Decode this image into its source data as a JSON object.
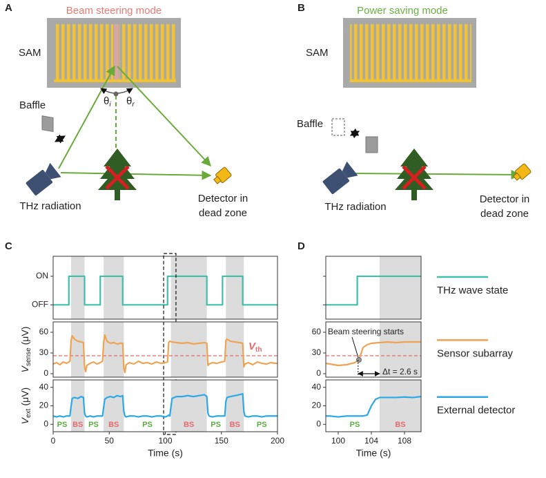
{
  "panel_labels": [
    "A",
    "B",
    "C",
    "D"
  ],
  "diagram_a": {
    "title": "Beam steering mode",
    "sam": "SAM",
    "baffle": "Baffle",
    "source": "THz radiation",
    "detector": [
      "Detector in",
      "dead zone"
    ],
    "theta_i": {
      "main": "θ",
      "sub": "i"
    },
    "theta_r": {
      "main": "θ",
      "sub": "r"
    }
  },
  "diagram_b": {
    "title": "Power saving mode",
    "sam": "SAM",
    "baffle": "Baffle",
    "source": "THz radiation",
    "detector": [
      "Detector in",
      "dead zone"
    ]
  },
  "chart_data": [
    {
      "type": "line",
      "xlim": [
        0,
        200
      ],
      "ylim": [
        -0.5,
        1.7
      ],
      "yticks": [
        {
          "value": 0,
          "label": "OFF"
        },
        {
          "value": 1,
          "label": "ON"
        }
      ],
      "x": [
        0,
        14,
        14,
        28,
        28,
        42,
        42,
        62,
        62,
        102,
        102,
        137,
        137,
        151,
        151,
        169,
        169,
        200
      ],
      "series": [
        {
          "name": "THz wave state",
          "color": "#3dbfab",
          "values": [
            0,
            0,
            1,
            1,
            0,
            0,
            1,
            1,
            0,
            0,
            1,
            1,
            0,
            0,
            1,
            1,
            0,
            0
          ]
        }
      ],
      "shaded": [
        [
          16,
          28
        ],
        [
          45,
          63
        ],
        [
          105,
          137
        ],
        [
          154,
          170
        ]
      ],
      "shade_color": "#dcdcdc",
      "dashed_box_x": [
        98.5,
        109.5
      ]
    },
    {
      "type": "line",
      "xlim": [
        0,
        200
      ],
      "ylim": [
        -5,
        75
      ],
      "yticks": [
        0,
        30,
        60
      ],
      "ylabel": {
        "main": "V",
        "sub": "sense",
        "unit": "(μV)"
      },
      "x": [
        0,
        3,
        6,
        9,
        12,
        15,
        16,
        17,
        19,
        22,
        25,
        27,
        28,
        29,
        30,
        33,
        36,
        39,
        42,
        44,
        45,
        46,
        48,
        51,
        54,
        57,
        60,
        62,
        63,
        64,
        65,
        68,
        72,
        76,
        80,
        84,
        88,
        92,
        96,
        100,
        102,
        103,
        104,
        106,
        110,
        115,
        120,
        125,
        130,
        135,
        137,
        138,
        139,
        142,
        146,
        150,
        153,
        154,
        155,
        158,
        162,
        166,
        169,
        170,
        171,
        174,
        178,
        182,
        186,
        190,
        194,
        198,
        200
      ],
      "series": [
        {
          "name": "Sensor subarray",
          "color": "#f0a253",
          "values": [
            14,
            16,
            13,
            17,
            15,
            18,
            48,
            55,
            50,
            47,
            46,
            45,
            10,
            3,
            12,
            15,
            17,
            14,
            16,
            18,
            45,
            56,
            47,
            44,
            45,
            43,
            44,
            44,
            8,
            2,
            13,
            16,
            14,
            18,
            15,
            16,
            14,
            17,
            15,
            16,
            17,
            45,
            47,
            46,
            45,
            44,
            45,
            43,
            44,
            45,
            44,
            12,
            14,
            16,
            15,
            17,
            18,
            48,
            50,
            47,
            46,
            45,
            44,
            10,
            14,
            16,
            13,
            17,
            15,
            14,
            16,
            15,
            15
          ]
        }
      ],
      "shaded": [
        [
          16,
          28
        ],
        [
          45,
          63
        ],
        [
          105,
          137
        ],
        [
          154,
          170
        ]
      ],
      "shade_color": "#dcdcdc",
      "threshold": {
        "value": 26,
        "color": "#e8696b",
        "label": {
          "main": "V",
          "sub": "th"
        }
      }
    },
    {
      "type": "line",
      "xlim": [
        0,
        200
      ],
      "ylim": [
        -8,
        48
      ],
      "yticks": [
        0,
        20,
        40
      ],
      "xticks": [
        0,
        50,
        100,
        150,
        200
      ],
      "xlabel": "Time (s)",
      "ylabel": {
        "main": "V",
        "sub": "ext",
        "unit": "(μV)"
      },
      "x": [
        0,
        3,
        6,
        9,
        12,
        15,
        16,
        17,
        19,
        22,
        25,
        27,
        28,
        29,
        30,
        33,
        36,
        39,
        42,
        44,
        45,
        46,
        48,
        51,
        54,
        57,
        60,
        62,
        63,
        64,
        65,
        68,
        72,
        76,
        80,
        84,
        88,
        92,
        96,
        100,
        102,
        103,
        104,
        106,
        110,
        115,
        120,
        125,
        130,
        135,
        137,
        138,
        139,
        142,
        146,
        150,
        153,
        154,
        155,
        158,
        162,
        166,
        169,
        170,
        171,
        174,
        178,
        182,
        186,
        190,
        194,
        198,
        200
      ],
      "series": [
        {
          "name": "External detector",
          "color": "#2aa9e6",
          "values": [
            9,
            8,
            9,
            8,
            9,
            9,
            20,
            28,
            29,
            28,
            30,
            29,
            12,
            9,
            8,
            9,
            8,
            9,
            9,
            9,
            18,
            27,
            29,
            30,
            29,
            31,
            30,
            31,
            14,
            9,
            8,
            9,
            9,
            8,
            9,
            9,
            8,
            9,
            9,
            8,
            9,
            10,
            9,
            28,
            30,
            30,
            31,
            30,
            31,
            32,
            30,
            12,
            9,
            8,
            9,
            9,
            9,
            25,
            29,
            30,
            31,
            32,
            33,
            14,
            9,
            8,
            9,
            9,
            8,
            9,
            9,
            9,
            9
          ]
        }
      ],
      "shaded": [
        [
          16,
          28
        ],
        [
          45,
          63
        ],
        [
          105,
          137
        ],
        [
          154,
          170
        ]
      ],
      "shade_color": "#dcdcdc",
      "region_labels": [
        {
          "x": 8,
          "text": "PS",
          "color": "#5aac3f"
        },
        {
          "x": 22,
          "text": "BS",
          "color": "#e8696b"
        },
        {
          "x": 36,
          "text": "PS",
          "color": "#5aac3f"
        },
        {
          "x": 54,
          "text": "BS",
          "color": "#e8696b"
        },
        {
          "x": 84,
          "text": "PS",
          "color": "#5aac3f"
        },
        {
          "x": 121,
          "text": "BS",
          "color": "#e8696b"
        },
        {
          "x": 145,
          "text": "PS",
          "color": "#5aac3f"
        },
        {
          "x": 162,
          "text": "BS",
          "color": "#e8696b"
        },
        {
          "x": 186,
          "text": "PS",
          "color": "#5aac3f"
        }
      ]
    },
    {
      "type": "line",
      "xlim": [
        98.5,
        110
      ],
      "ylim": [
        -0.5,
        1.7
      ],
      "yticks": [
        0,
        1
      ],
      "ytick_labels": false,
      "x": [
        98.5,
        102.3,
        102.3,
        110
      ],
      "series": [
        {
          "color": "#3dbfab",
          "values": [
            0,
            0,
            1,
            1
          ]
        }
      ],
      "shaded": [
        [
          105,
          110
        ]
      ],
      "shade_color": "#dcdcdc"
    },
    {
      "type": "line",
      "xlim": [
        98.5,
        110
      ],
      "ylim": [
        -5,
        75
      ],
      "yticks": [
        0,
        30,
        60
      ],
      "x": [
        98.5,
        99,
        100,
        101,
        102,
        102.5,
        103,
        103.5,
        104,
        105,
        106,
        107,
        108,
        109,
        110
      ],
      "series": [
        {
          "color": "#f0a253",
          "values": [
            15,
            14,
            12,
            13,
            16,
            20,
            38,
            42,
            44,
            45,
            46,
            45,
            46,
            46,
            46
          ]
        }
      ],
      "shaded": [
        [
          105,
          110
        ]
      ],
      "shade_color": "#dcdcdc",
      "threshold": {
        "value": 26,
        "color": "#e8696b"
      },
      "annotation": {
        "text": "Beam steering starts",
        "x": 102.5,
        "y": 20
      },
      "interval": {
        "text": "Δt = 2.6 s",
        "x": [
          102.4,
          105
        ],
        "y": 0
      }
    },
    {
      "type": "line",
      "xlim": [
        98.5,
        110
      ],
      "ylim": [
        -8,
        48
      ],
      "yticks": [
        0,
        20,
        40
      ],
      "xticks": [
        100,
        104,
        108
      ],
      "xlabel": "Time (s)",
      "x": [
        98.5,
        99,
        100,
        101,
        102,
        102.5,
        103,
        103.5,
        104,
        104.5,
        105,
        106,
        107,
        108,
        109,
        110
      ],
      "series": [
        {
          "color": "#2aa9e6",
          "values": [
            9,
            9,
            8,
            9,
            9,
            9,
            9,
            10,
            20,
            27,
            29,
            29,
            29,
            29.5,
            29,
            30
          ]
        }
      ],
      "shaded": [
        [
          105,
          110
        ]
      ],
      "shade_color": "#dcdcdc",
      "region_labels": [
        {
          "x": 102,
          "text": "PS",
          "color": "#5aac3f"
        },
        {
          "x": 107.5,
          "text": "BS",
          "color": "#e8696b"
        }
      ]
    }
  ]
}
